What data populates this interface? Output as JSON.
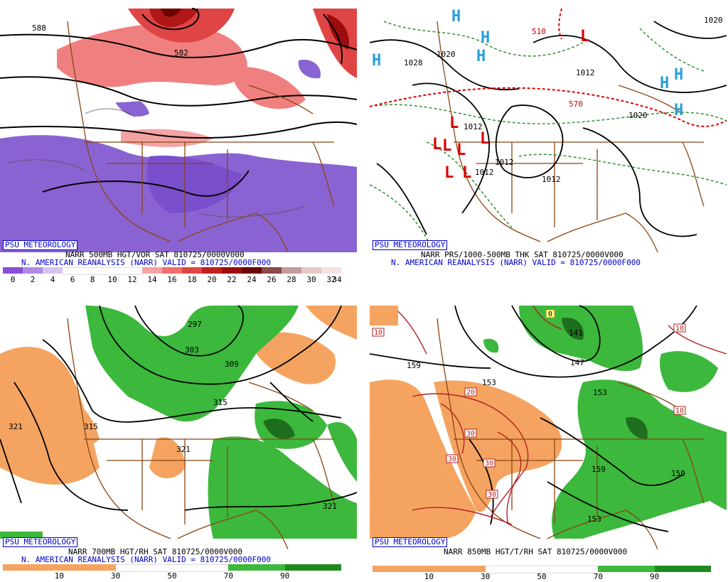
{
  "panels": [
    {
      "tag": "PSU METEOROLOGY",
      "line1": "NARR 500MB HGT/VOR SAT 810725/0000V000",
      "line2": "N. AMERICAN REANALYSIS (NARR) VALID = 810725/0000F000",
      "contour_labels": [
        "588",
        "582"
      ],
      "colorbar_colors": [
        "#8a4fd6",
        "#b28ae3",
        "#d7c4f0",
        "#ffffff",
        "#ffffff",
        "#ffffff",
        "#ffffff",
        "#f3a3a3",
        "#ef6f6f",
        "#e04545",
        "#c21f1f",
        "#9b0d0d",
        "#6d0000",
        "#8a4a4a",
        "#c49a9a",
        "#e6c8c8",
        "#f5e2e2"
      ],
      "colorbar_ticks": [
        "0",
        "2",
        "4",
        "6",
        "8",
        "10",
        "12",
        "14",
        "16",
        "18",
        "20",
        "22",
        "24",
        "26",
        "28",
        "30",
        "32",
        "34"
      ]
    },
    {
      "tag": "PSU METEOROLOGY",
      "line1": "NARR PRS/1000-500MB THK SAT 810725/0000V000",
      "line2": "N. AMERICAN REANALYSIS (NARR) VALID = 810725/0000F000",
      "contour_labels": [
        "1020",
        "1028",
        "1020",
        "1012",
        "1012",
        "1012",
        "1012",
        "570",
        "510",
        "1020",
        "1012"
      ],
      "high_letter": "H",
      "low_letter": "L"
    },
    {
      "tag": "PSU METEOROLOGY",
      "line1": "NARR 700MB HGT/RH SAT 810725/0000V000",
      "line2": "N. AMERICAN REANALYSIS (NARR) VALID = 810725/0000F000",
      "contour_labels": [
        "297",
        "303",
        "309",
        "315",
        "321",
        "315",
        "321",
        "321"
      ],
      "colorbar_colors": [
        "#f4a460",
        "#f4a460",
        "#ffffff",
        "#ffffff",
        "#3cb83c",
        "#1e8a1e"
      ],
      "colorbar_ticks": [
        "10",
        "30",
        "50",
        "70",
        "90"
      ]
    },
    {
      "tag": "PSU METEOROLOGY",
      "line1": "NARR 850MB HGT/T/RH SAT 810725/0000V000",
      "line2": "",
      "contour_labels": [
        "159",
        "153",
        "147",
        "141",
        "153",
        "159",
        "159",
        "153"
      ],
      "temp_labels": [
        "10",
        "10",
        "10",
        "20",
        "30",
        "30",
        "30",
        "30",
        "0"
      ],
      "colorbar_colors": [
        "#f4a460",
        "#f4a460",
        "#ffffff",
        "#ffffff",
        "#3cb83c",
        "#1e8a1e"
      ],
      "colorbar_ticks": [
        "10",
        "30",
        "50",
        "70",
        "90"
      ]
    }
  ]
}
